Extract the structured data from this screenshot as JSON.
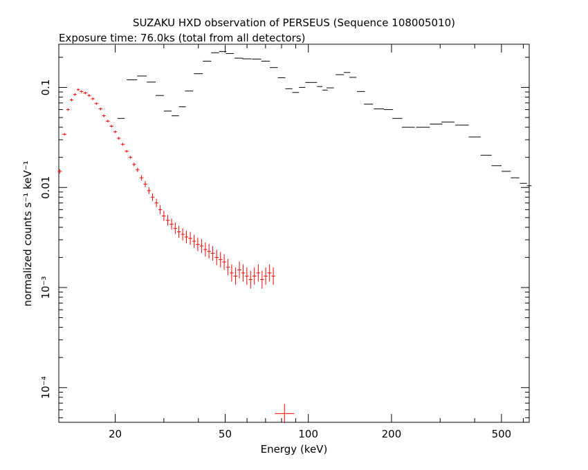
{
  "chart_data": {
    "type": "scatter",
    "title": "SUZAKU HXD observation of PERSEUS (Sequence 108005010)",
    "subtitle": "Exposure time: 76.0ks (total from all detectors)",
    "xlabel": "Energy (keV)",
    "ylabel": "normalized counts s⁻¹ keV⁻¹",
    "xscale": "log",
    "yscale": "log",
    "xlim": [
      12.5,
      630
    ],
    "ylim": [
      4.5e-05,
      0.27
    ],
    "x_tick_labels": [
      {
        "value": 20,
        "label": "20"
      },
      {
        "value": 50,
        "label": "50"
      },
      {
        "value": 100,
        "label": "100"
      },
      {
        "value": 200,
        "label": "200"
      },
      {
        "value": 500,
        "label": "500"
      }
    ],
    "y_tick_labels": [
      {
        "value": 0.1,
        "label": "0.1"
      },
      {
        "value": 0.01,
        "label": "0.01"
      },
      {
        "value": 0.001,
        "label": "10⁻³"
      },
      {
        "value": 0.0001,
        "label": "10⁻⁴"
      }
    ],
    "grid": false,
    "series": [
      {
        "color": "#ff0000",
        "points": [
          [
            12.6,
            0.0145
          ],
          [
            13.1,
            0.034
          ],
          [
            13.5,
            0.06
          ],
          [
            13.9,
            0.075
          ],
          [
            14.3,
            0.085
          ],
          [
            14.7,
            0.095
          ],
          [
            15.1,
            0.091
          ],
          [
            15.6,
            0.088
          ],
          [
            16.1,
            0.083
          ],
          [
            16.6,
            0.077
          ],
          [
            17.1,
            0.069
          ],
          [
            17.7,
            0.061
          ],
          [
            18.2,
            0.052
          ],
          [
            18.8,
            0.046
          ],
          [
            19.4,
            0.041
          ],
          [
            20.0,
            0.036
          ],
          [
            20.6,
            0.031
          ],
          [
            21.3,
            0.027
          ],
          [
            22.0,
            0.023
          ],
          [
            22.7,
            0.02
          ],
          [
            23.4,
            0.017
          ],
          [
            24.1,
            0.015
          ],
          [
            24.9,
            0.0125
          ],
          [
            25.7,
            0.0108
          ],
          [
            26.5,
            0.0093
          ],
          [
            27.3,
            0.008
          ],
          [
            28.2,
            0.007
          ],
          [
            29.1,
            0.006
          ],
          [
            30.0,
            0.0052
          ],
          [
            31.0,
            0.0047
          ],
          [
            32.0,
            0.0043
          ],
          [
            33.0,
            0.0039
          ],
          [
            34.0,
            0.0036
          ],
          [
            35.1,
            0.0034
          ],
          [
            36.2,
            0.0032
          ],
          [
            37.4,
            0.0031
          ],
          [
            38.6,
            0.0029
          ],
          [
            39.8,
            0.0027
          ],
          [
            41.1,
            0.0026
          ],
          [
            42.4,
            0.0024
          ],
          [
            43.7,
            0.0023
          ],
          [
            45.1,
            0.0022
          ],
          [
            46.6,
            0.002
          ],
          [
            48.1,
            0.0019
          ],
          [
            49.6,
            0.0018
          ],
          [
            51.2,
            0.0016
          ],
          [
            52.8,
            0.0014
          ],
          [
            54.5,
            0.0013
          ],
          [
            56.3,
            0.0015
          ],
          [
            58.1,
            0.0014
          ],
          [
            59.9,
            0.0013
          ],
          [
            61.8,
            0.0012
          ],
          [
            63.8,
            0.0013
          ],
          [
            65.9,
            0.0014
          ],
          [
            68.0,
            0.0012
          ],
          [
            70.1,
            0.0013
          ],
          [
            72.4,
            0.0014
          ],
          [
            74.7,
            0.0013
          ]
        ],
        "upper_limit_marker": [
          82,
          5.5e-05
        ]
      },
      {
        "color": "#000000",
        "points": [
          [
            21.0,
            0.049
          ],
          [
            23.0,
            0.119
          ],
          [
            25.0,
            0.13
          ],
          [
            27.0,
            0.113
          ],
          [
            29.0,
            0.083
          ],
          [
            31.0,
            0.058
          ],
          [
            33.0,
            0.052
          ],
          [
            35.0,
            0.064
          ],
          [
            37.0,
            0.092
          ],
          [
            40.0,
            0.137
          ],
          [
            43.0,
            0.183
          ],
          [
            46.0,
            0.222
          ],
          [
            49.0,
            0.228
          ],
          [
            52.0,
            0.218
          ],
          [
            56.0,
            0.196
          ],
          [
            60.0,
            0.193
          ],
          [
            65.0,
            0.192
          ],
          [
            70.0,
            0.183
          ],
          [
            75.0,
            0.158
          ],
          [
            80.0,
            0.125
          ],
          [
            85.0,
            0.097
          ],
          [
            90.0,
            0.089
          ],
          [
            95.0,
            0.1
          ],
          [
            100.0,
            0.112
          ],
          [
            105.0,
            0.112
          ],
          [
            110.0,
            0.102
          ],
          [
            115.0,
            0.094
          ],
          [
            120.0,
            0.099
          ],
          [
            130.0,
            0.134
          ],
          [
            138.0,
            0.141
          ],
          [
            145.0,
            0.126
          ],
          [
            155.0,
            0.091
          ],
          [
            165.0,
            0.068
          ],
          [
            180.0,
            0.061
          ],
          [
            195.0,
            0.06
          ],
          [
            210.0,
            0.049
          ],
          [
            230.0,
            0.04
          ],
          [
            260.0,
            0.04
          ],
          [
            290.0,
            0.043
          ],
          [
            320.0,
            0.045
          ],
          [
            360.0,
            0.042
          ],
          [
            400.0,
            0.032
          ],
          [
            440.0,
            0.021
          ],
          [
            480.0,
            0.0165
          ],
          [
            520.0,
            0.0145
          ],
          [
            560.0,
            0.0125
          ],
          [
            600.0,
            0.011
          ],
          [
            630.0,
            0.0104
          ]
        ]
      }
    ]
  }
}
